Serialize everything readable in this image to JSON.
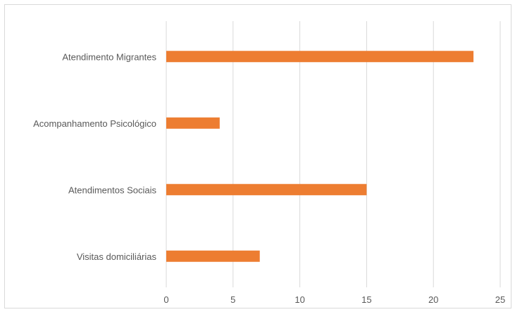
{
  "chart_data": {
    "type": "bar",
    "orientation": "horizontal",
    "categories": [
      "Atendimento Migrantes",
      "Acompanhamento Psicológico",
      "Atendimentos Sociais",
      "Visitas domiciliárias"
    ],
    "values": [
      23,
      4,
      15,
      7
    ],
    "xlim": [
      0,
      25
    ],
    "xticks": [
      "0",
      "5",
      "10",
      "15",
      "20",
      "25"
    ],
    "grid": true,
    "legend": "none",
    "colors": {
      "bar": "#ED7D31",
      "grid": "#D9D9D9",
      "text": "#595959"
    }
  }
}
